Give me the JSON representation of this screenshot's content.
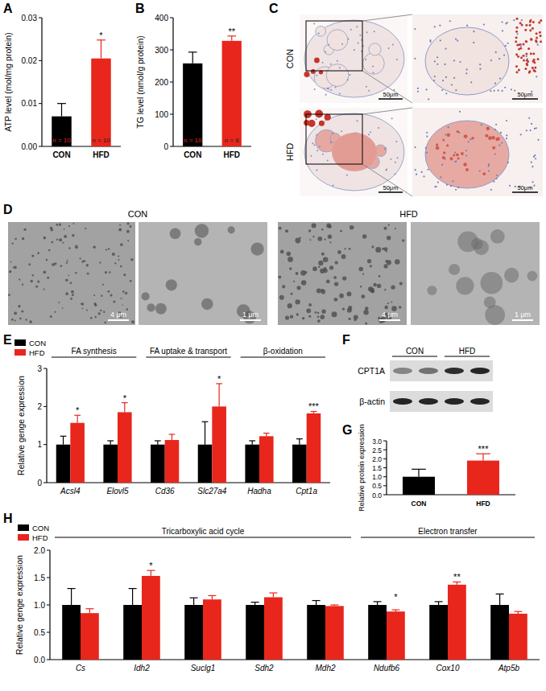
{
  "chart_data": [
    {
      "panel": "A",
      "type": "bar",
      "y_label": "ATP level (mol/mg protein)",
      "categories": [
        "CON",
        "HFD"
      ],
      "values": [
        0.007,
        0.0205
      ],
      "errors": [
        0.003,
        0.0043
      ],
      "colors": [
        "#000000",
        "#e8261c"
      ],
      "n_labels": [
        "n = 10",
        "n = 10"
      ],
      "significance": [
        null,
        "*"
      ],
      "ylim": [
        0,
        0.03
      ],
      "yticks": [
        {
          "value": 0,
          "label": "0.00"
        },
        {
          "value": 0.01,
          "label": "0.01"
        },
        {
          "value": 0.02,
          "label": "0.02"
        },
        {
          "value": 0.03,
          "label": "0.03"
        }
      ]
    },
    {
      "panel": "B",
      "type": "bar",
      "y_label": "TG level (nmol/g protein)",
      "categories": [
        "CON",
        "HFD"
      ],
      "values": [
        258,
        328
      ],
      "errors": [
        35,
        15
      ],
      "colors": [
        "#000000",
        "#e8261c"
      ],
      "n_labels": [
        "n = 10",
        "n = 8"
      ],
      "significance": [
        null,
        "**"
      ],
      "ylim": [
        0,
        400
      ],
      "yticks": [
        0,
        100,
        200,
        300,
        400
      ]
    },
    {
      "panel": "E",
      "type": "bar",
      "y_label": "Relative genge expression",
      "categories": [
        "Acsl4",
        "Elovl5",
        "Cd36",
        "Slc27a4",
        "Hadha",
        "Cpt1a"
      ],
      "series": [
        {
          "name": "CON",
          "color": "#000000",
          "values": [
            1.0,
            1.0,
            1.0,
            1.0,
            1.0,
            1.0
          ],
          "errors": [
            0.22,
            0.1,
            0.1,
            0.6,
            0.1,
            0.15
          ]
        },
        {
          "name": "HFD",
          "color": "#e8261c",
          "values": [
            1.57,
            1.85,
            1.12,
            2.0,
            1.22,
            1.82
          ],
          "errors": [
            0.2,
            0.25,
            0.15,
            0.6,
            0.08,
            0.05
          ]
        }
      ],
      "significance": [
        "*",
        "*",
        null,
        "*",
        null,
        "***"
      ],
      "groups": [
        {
          "label": "FA synthesis",
          "size": 2
        },
        {
          "label": "FA uptake & transport",
          "size": 2
        },
        {
          "label": "β-oxidation",
          "size": 2
        }
      ],
      "ylim": [
        0,
        3
      ],
      "yticks": [
        0,
        1,
        2,
        3
      ],
      "legend": "upper left"
    },
    {
      "panel": "G",
      "type": "bar",
      "y_label": "Relative protein expression",
      "categories": [
        "CON",
        "HFD"
      ],
      "values": [
        1.0,
        1.9
      ],
      "errors": [
        0.42,
        0.38
      ],
      "colors": [
        "#000000",
        "#e8261c"
      ],
      "significance": [
        null,
        "***"
      ],
      "ylim": [
        0,
        3
      ],
      "yticks": [
        {
          "value": 0,
          "label": "0.0"
        },
        {
          "value": 0.5,
          "label": "0.5"
        },
        {
          "value": 1,
          "label": "1.0"
        },
        {
          "value": 1.5,
          "label": "1.5"
        },
        {
          "value": 2,
          "label": "2.0"
        },
        {
          "value": 2.5,
          "label": "2.5"
        },
        {
          "value": 3,
          "label": "3.0"
        }
      ]
    },
    {
      "panel": "H",
      "type": "bar",
      "y_label": "Relative genge expression",
      "categories": [
        "Cs",
        "Idh2",
        "Suclg1",
        "Sdh2",
        "Mdh2",
        "Ndufb6",
        "Cox10",
        "Atp5b"
      ],
      "series": [
        {
          "name": "CON",
          "color": "#000000",
          "values": [
            1.0,
            1.0,
            1.0,
            1.0,
            1.0,
            1.0,
            1.0,
            1.0
          ],
          "errors": [
            0.3,
            0.3,
            0.13,
            0.05,
            0.08,
            0.06,
            0.06,
            0.2
          ]
        },
        {
          "name": "HFD",
          "color": "#e8261c",
          "values": [
            0.85,
            1.53,
            1.1,
            1.14,
            0.98,
            0.88,
            1.37,
            0.84
          ],
          "errors": [
            0.08,
            0.1,
            0.07,
            0.08,
            0.02,
            0.03,
            0.05,
            0.04
          ]
        }
      ],
      "significance": [
        null,
        "*",
        null,
        null,
        null,
        "*",
        "**",
        null
      ],
      "groups": [
        {
          "label": "Tricarboxylic acid cycle",
          "size": 5
        },
        {
          "label": "Electron transfer",
          "size": 3
        }
      ],
      "ylim": [
        0,
        2
      ],
      "yticks": [
        {
          "value": 0,
          "label": "0.0"
        },
        {
          "value": 0.5,
          "label": "0.5"
        },
        {
          "value": 1,
          "label": "1.0"
        },
        {
          "value": 1.5,
          "label": "1.5"
        },
        {
          "value": 2,
          "label": "2.0"
        }
      ],
      "legend": "upper left"
    }
  ],
  "panel_c": {
    "panel": "C",
    "rows": [
      "CON",
      "HFD"
    ],
    "scale_bar": "50μm"
  },
  "panel_d": {
    "panel": "D",
    "groups": [
      "CON",
      "HFD"
    ],
    "scale_bars": [
      "4 μm",
      "1 μm"
    ]
  },
  "panel_f": {
    "panel": "F",
    "bands": [
      "CPT1A",
      "β-actin"
    ],
    "groups": [
      "CON",
      "HFD"
    ]
  }
}
